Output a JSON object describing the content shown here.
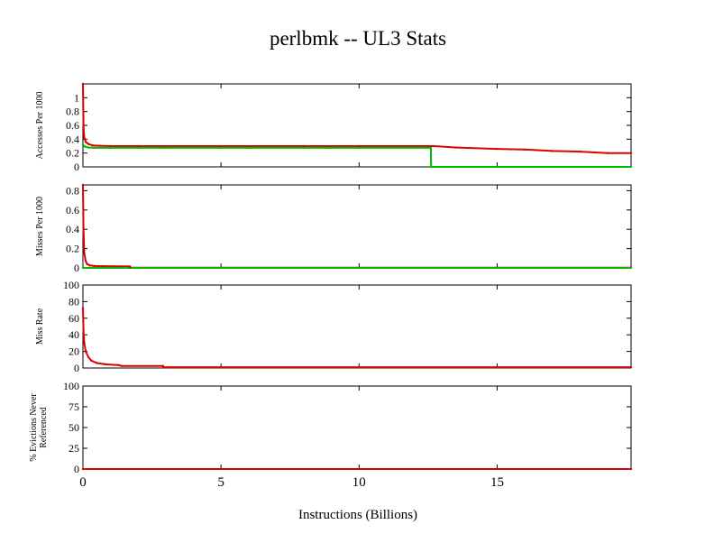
{
  "title": "perlbmk -- UL3  Stats",
  "xlabel": "Instructions (Billions)",
  "x_ticks": [
    "0",
    "5",
    "10",
    "15"
  ],
  "colors": {
    "series_total": "#dd0000",
    "series_secondary": "#00bb00"
  },
  "chart_data": [
    {
      "type": "line",
      "ylabel": "Accesses Per 1000",
      "xlim": [
        0,
        19.85
      ],
      "ylim": [
        0,
        1.2
      ],
      "yticks": [
        "0",
        "0.2",
        "0.4",
        "0.6",
        "0.8",
        "1"
      ],
      "series": [
        {
          "color": "#dd0000",
          "x": [
            0,
            0.02,
            0.05,
            0.1,
            0.2,
            0.35,
            0.6,
            1,
            2,
            5,
            8,
            10,
            12.7,
            13.5,
            15,
            16,
            17,
            18,
            19,
            19.85
          ],
          "y": [
            1.2,
            0.6,
            0.42,
            0.36,
            0.33,
            0.31,
            0.305,
            0.3,
            0.3,
            0.3,
            0.3,
            0.3,
            0.3,
            0.28,
            0.26,
            0.25,
            0.23,
            0.22,
            0.2,
            0.2
          ]
        },
        {
          "color": "#00bb00",
          "x": [
            0,
            0.05,
            0.1,
            0.2,
            0.4,
            1,
            3,
            6,
            9,
            12.6,
            12.61,
            19.85
          ],
          "y": [
            0.32,
            0.3,
            0.29,
            0.28,
            0.275,
            0.275,
            0.275,
            0.275,
            0.275,
            0.275,
            0,
            0
          ]
        }
      ]
    },
    {
      "type": "line",
      "ylabel": "Misses Per 1000",
      "xlim": [
        0,
        19.85
      ],
      "ylim": [
        0,
        0.86
      ],
      "yticks": [
        "0",
        "0.2",
        "0.4",
        "0.6",
        "0.8"
      ],
      "series": [
        {
          "color": "#dd0000",
          "x": [
            0,
            0.02,
            0.05,
            0.1,
            0.15,
            0.25,
            0.4,
            0.7,
            1.7,
            1.71,
            19.85
          ],
          "y": [
            0.86,
            0.4,
            0.15,
            0.07,
            0.04,
            0.025,
            0.02,
            0.018,
            0.015,
            0.003,
            0.003
          ]
        },
        {
          "color": "#00bb00",
          "x": [
            0,
            0.6,
            19.85
          ],
          "y": [
            0,
            0,
            0
          ]
        }
      ]
    },
    {
      "type": "line",
      "ylabel": "Miss Rate",
      "xlim": [
        0,
        19.85
      ],
      "ylim": [
        0,
        100
      ],
      "yticks": [
        "0",
        "20",
        "40",
        "60",
        "80",
        "100"
      ],
      "series": [
        {
          "color": "#dd0000",
          "x": [
            0,
            0.02,
            0.05,
            0.1,
            0.2,
            0.3,
            0.5,
            0.8,
            1.3,
            1.4,
            2.9,
            2.91,
            19.85
          ],
          "y": [
            72,
            45,
            30,
            20,
            13,
            9,
            6,
            4.5,
            3.5,
            2.5,
            2.5,
            1,
            1
          ]
        }
      ]
    },
    {
      "type": "line",
      "ylabel": "% Evictions Never Referenced",
      "xlim": [
        0,
        19.85
      ],
      "ylim": [
        0,
        100
      ],
      "yticks": [
        "0",
        "25",
        "50",
        "75",
        "100"
      ],
      "series": [
        {
          "color": "#dd0000",
          "x": [
            0,
            19.85
          ],
          "y": [
            0,
            0
          ]
        }
      ]
    }
  ]
}
